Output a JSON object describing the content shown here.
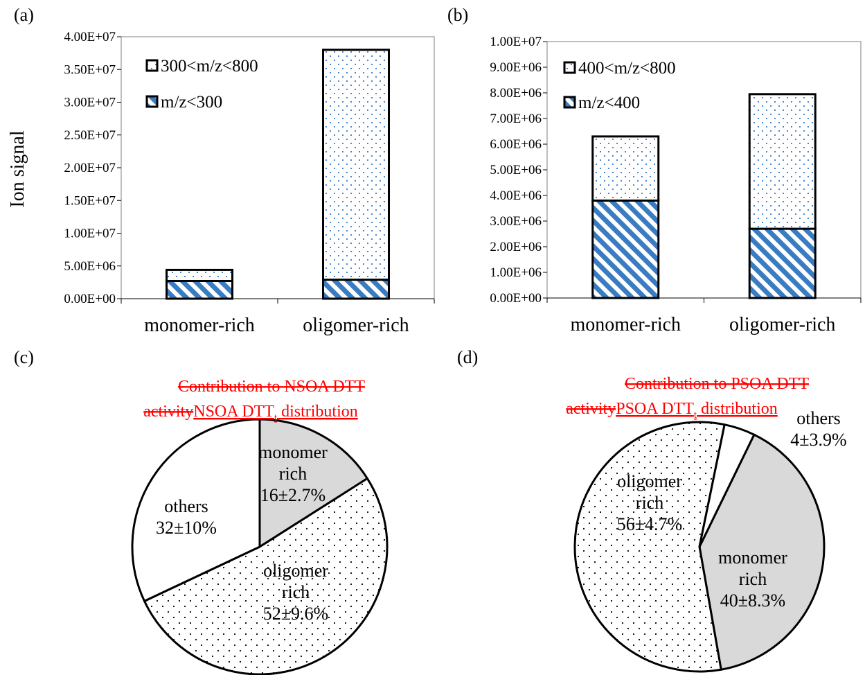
{
  "colors": {
    "hatch": "#3a7cc2",
    "dot_blue": "#4a86c8",
    "monomer_slice": "#d9d9d9",
    "annotation_red": "#ff0000",
    "outline": "#000000"
  },
  "chart_data": [
    {
      "panel_label": "(a)",
      "type": "bar",
      "stacked": true,
      "ylabel": "Ion signal",
      "ylim": [
        0,
        40000000
      ],
      "yticks": [
        "0.00E+00",
        "5.00E+06",
        "1.00E+07",
        "1.50E+07",
        "2.00E+07",
        "2.50E+07",
        "3.00E+07",
        "3.50E+07",
        "4.00E+07"
      ],
      "categories": [
        "monomer-rich",
        "oligomer-rich"
      ],
      "series": [
        {
          "name": "m/z<300",
          "pattern": "hatch",
          "values": [
            2700000,
            2900000
          ]
        },
        {
          "name": "300<m/z<800",
          "pattern": "dots",
          "values": [
            1700000,
            35100000
          ]
        }
      ],
      "legend_order": [
        "300<m/z<800",
        "m/z<300"
      ],
      "legend_position": "top-left"
    },
    {
      "panel_label": "(b)",
      "type": "bar",
      "stacked": true,
      "ylabel": "",
      "ylim": [
        0,
        10000000
      ],
      "yticks": [
        "0.00E+00",
        "1.00E+06",
        "2.00E+06",
        "3.00E+06",
        "4.00E+06",
        "5.00E+06",
        "6.00E+06",
        "7.00E+06",
        "8.00E+06",
        "9.00E+06",
        "1.00E+07"
      ],
      "categories": [
        "monomer-rich",
        "oligomer-rich"
      ],
      "series": [
        {
          "name": "m/z<400",
          "pattern": "hatch",
          "values": [
            3800000,
            2700000
          ]
        },
        {
          "name": "400<m/z<800",
          "pattern": "dots",
          "values": [
            2500000,
            5250000
          ]
        }
      ],
      "legend_order": [
        "400<m/z<800",
        "m/z<400"
      ],
      "legend_position": "top-left"
    },
    {
      "panel_label": "(c)",
      "type": "pie",
      "title_struck": [
        "Contribution to NSOA DTT",
        "activity"
      ],
      "title_main": "NSOA DTT",
      "title_sub": "t",
      "title_tail": " distribution",
      "slices": [
        {
          "name": "monomer rich",
          "value": 16,
          "label_lines": [
            "monomer",
            "rich",
            "16±2.7%"
          ],
          "fill": "gray"
        },
        {
          "name": "oligomer rich",
          "value": 52,
          "label_lines": [
            "oligomer",
            "rich",
            "52±9.6%"
          ],
          "fill": "dots"
        },
        {
          "name": "others",
          "value": 32,
          "label_lines": [
            "others",
            "32±10%"
          ],
          "fill": "white"
        }
      ]
    },
    {
      "panel_label": "(d)",
      "type": "pie",
      "title_struck": [
        "Contribution to PSOA DTT",
        "activity"
      ],
      "title_main": "PSOA DTT",
      "title_sub": "t",
      "title_tail": " distribution",
      "slices": [
        {
          "name": "monomer rich",
          "value": 40,
          "label_lines": [
            "monomer",
            "rich",
            "40±8.3%"
          ],
          "fill": "gray"
        },
        {
          "name": "oligomer rich",
          "value": 56,
          "label_lines": [
            "oligomer",
            "rich",
            "56±4.7%"
          ],
          "fill": "dots"
        },
        {
          "name": "others",
          "value": 4,
          "label_lines": [
            "others",
            "4±3.9%"
          ],
          "fill": "white"
        }
      ]
    }
  ]
}
